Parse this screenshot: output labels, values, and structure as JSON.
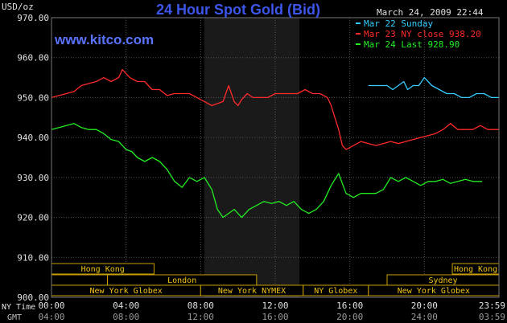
{
  "header": {
    "title": "24 Hour Spot Gold (Bid)",
    "website": "www.kitco.com",
    "unit": "USD/oz",
    "datetime": "March 24, 2009 22:44"
  },
  "legend": [
    {
      "label": "Mar 22 Sunday",
      "color": "#33ccff"
    },
    {
      "label": "Mar 23 NY close 938.20",
      "color": "#ff2a2a"
    },
    {
      "label": "Mar 24 Last 928.90",
      "color": "#22ee22"
    }
  ],
  "axis_labels": {
    "ny_time": "NY Time",
    "gmt": "GMT"
  },
  "sessions": {
    "row1": [
      {
        "label": "Hong Kong",
        "start": 0,
        "end": 5.5
      },
      {
        "label": "Hong Kong",
        "start": 21.5,
        "end": 24
      }
    ],
    "row2": [
      {
        "label": "",
        "start": 0,
        "end": 3
      },
      {
        "label": "London",
        "start": 3,
        "end": 11
      },
      {
        "label": "Sydney",
        "start": 18,
        "end": 24
      }
    ],
    "row3": [
      {
        "label": "New York Globex",
        "start": 0,
        "end": 8
      },
      {
        "label": "New York NYMEX",
        "start": 8,
        "end": 13.5
      },
      {
        "label": "NY Globex",
        "start": 13.5,
        "end": 17
      },
      {
        "label": "New York Globex",
        "start": 17,
        "end": 24
      }
    ]
  },
  "chart_data": {
    "type": "line",
    "title": "24 Hour Spot Gold (Bid)",
    "ylabel": "USD/oz",
    "ylim": [
      900,
      970
    ],
    "xlim": [
      0,
      24
    ],
    "y_ticks": [
      "970.00",
      "960.00",
      "950.00",
      "940.00",
      "930.00",
      "920.00",
      "910.00",
      "900.00"
    ],
    "y_tick_values": [
      970,
      960,
      950,
      940,
      930,
      920,
      910,
      900
    ],
    "x_ticks": [
      "00:00",
      "04:00",
      "08:00",
      "12:00",
      "16:00",
      "20:00",
      "23:59"
    ],
    "x_ticks_gmt": [
      "04:00",
      "08:00",
      "12:00",
      "16:00",
      "20:00",
      "24:00",
      "03:59"
    ],
    "x_tick_values": [
      0,
      4,
      8,
      12,
      16,
      20,
      24
    ],
    "grid": true,
    "legend_position": "top-right",
    "highlight_range": [
      8.2,
      13.3
    ],
    "series": [
      {
        "name": "Mar 22 Sunday",
        "color": "#33ccff",
        "x": [
          17,
          17.5,
          18,
          18.3,
          18.6,
          18.9,
          19.1,
          19.4,
          19.7,
          20,
          20.4,
          20.8,
          21.2,
          21.6,
          22,
          22.4,
          22.8,
          23.2,
          23.6,
          24
        ],
        "y": [
          953,
          953,
          953,
          952,
          953,
          954,
          952,
          953,
          953,
          955,
          953,
          952,
          951,
          951,
          950,
          950,
          951,
          951,
          950,
          950
        ]
      },
      {
        "name": "Mar 23 NY close 938.20",
        "color": "#ff2a2a",
        "x": [
          0,
          0.4,
          0.8,
          1.2,
          1.6,
          2,
          2.4,
          2.8,
          3.2,
          3.6,
          3.8,
          4.2,
          4.6,
          5,
          5.4,
          5.8,
          6.2,
          6.6,
          7,
          7.4,
          7.8,
          8.2,
          8.6,
          8.9,
          9.2,
          9.5,
          9.8,
          10,
          10.2,
          10.5,
          10.8,
          11.2,
          11.6,
          12,
          12.4,
          12.8,
          13.2,
          13.6,
          14,
          14.4,
          14.8,
          15,
          15.2,
          15.4,
          15.6,
          15.8,
          16,
          16.2,
          16.6,
          17,
          17.4,
          17.8,
          18.2,
          18.6,
          19,
          19.4,
          19.8,
          20.2,
          20.6,
          21,
          21.4,
          21.8,
          22.2,
          22.6,
          23,
          23.4,
          24
        ],
        "y": [
          950,
          950.5,
          951,
          951.5,
          953,
          953.5,
          954,
          955,
          954,
          955,
          957,
          955,
          954,
          954,
          952,
          952,
          950.5,
          951,
          951,
          951,
          950,
          949,
          948,
          948.5,
          949,
          953,
          949,
          948,
          949.5,
          951,
          950,
          950,
          950,
          951,
          951,
          951,
          951,
          952,
          951,
          951,
          950,
          948,
          945,
          942,
          938,
          937,
          937.5,
          938,
          939,
          938.5,
          938,
          938.5,
          939,
          938.5,
          939,
          939.5,
          940,
          940.5,
          941,
          942,
          943.5,
          942,
          942,
          942,
          943,
          942,
          942
        ]
      },
      {
        "name": "Mar 24 Last 928.90",
        "color": "#22ee22",
        "x": [
          0,
          0.4,
          0.8,
          1.2,
          1.6,
          2,
          2.4,
          2.8,
          3.2,
          3.6,
          4,
          4.3,
          4.6,
          5,
          5.4,
          5.8,
          6.2,
          6.6,
          7,
          7.4,
          7.8,
          8.2,
          8.6,
          8.9,
          9.2,
          9.5,
          9.8,
          10.2,
          10.6,
          11,
          11.4,
          11.8,
          12.2,
          12.6,
          13,
          13.4,
          13.8,
          14.2,
          14.6,
          15,
          15.4,
          15.8,
          16.2,
          16.6,
          17,
          17.4,
          17.8,
          18.2,
          18.6,
          19,
          19.4,
          19.8,
          20.2,
          20.6,
          21,
          21.4,
          21.8,
          22.2,
          22.6,
          23.1
        ],
        "y": [
          942,
          942.5,
          943,
          943.5,
          942.5,
          942,
          942,
          941,
          939.5,
          939,
          937,
          936.5,
          935,
          934,
          935,
          934,
          932,
          929,
          927.5,
          930,
          929,
          930,
          927,
          922,
          920,
          921,
          922,
          920,
          922,
          923,
          924,
          923.5,
          924,
          923,
          924,
          922,
          921,
          922,
          924,
          928,
          931,
          926,
          925,
          926,
          926,
          926,
          927,
          930,
          929,
          930,
          929,
          928,
          929,
          929,
          929.5,
          928.5,
          929,
          929.5,
          929,
          929
        ]
      }
    ]
  }
}
